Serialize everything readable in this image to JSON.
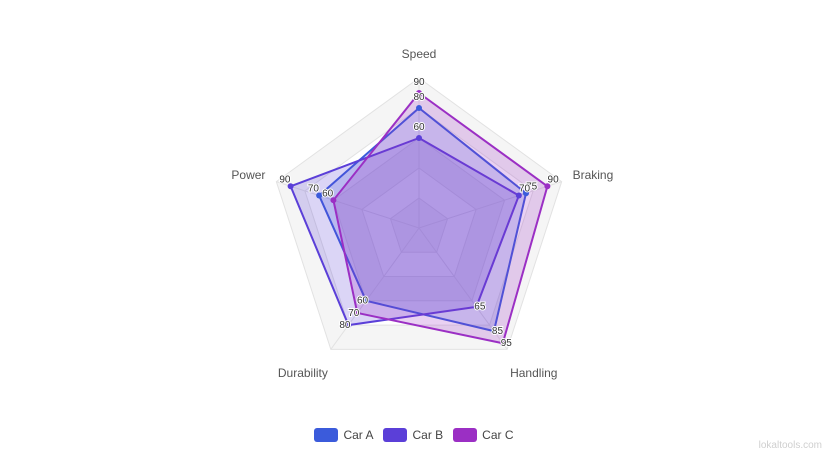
{
  "chart_data": {
    "type": "radar",
    "axes": [
      "Speed",
      "Braking",
      "Handling",
      "Durability",
      "Power"
    ],
    "series": [
      {
        "name": "Car A",
        "values": [
          80,
          75,
          85,
          60,
          70
        ],
        "color": "#3b5bdb"
      },
      {
        "name": "Car B",
        "values": [
          60,
          70,
          65,
          80,
          90
        ],
        "color": "#5b3fd8"
      },
      {
        "name": "Car C",
        "values": [
          90,
          90,
          95,
          70,
          60
        ],
        "color": "#9b2fc4"
      }
    ],
    "r_range": [
      0,
      100
    ],
    "data_labels": true,
    "legend_position": "bottom",
    "grid": true
  },
  "watermark": "lokaltools.com"
}
